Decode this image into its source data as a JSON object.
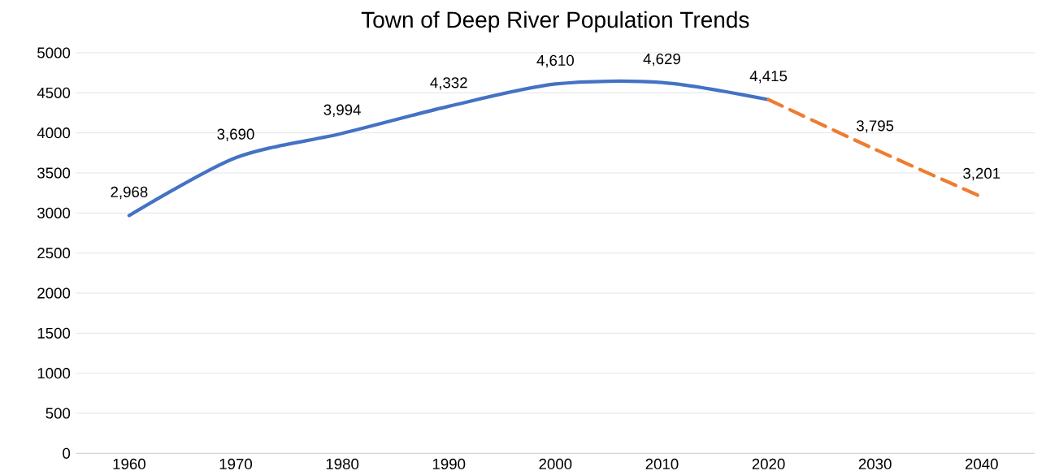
{
  "chart_data": {
    "type": "line",
    "title": "Town of Deep River Population Trends",
    "categories": [
      "1960",
      "1970",
      "1980",
      "1990",
      "2000",
      "2010",
      "2020",
      "2030",
      "2040"
    ],
    "series": [
      {
        "color": "#4472c4",
        "line_style": "solid",
        "values": [
          2968,
          3690,
          3994,
          4332,
          4610,
          4629,
          4415,
          null,
          null
        ],
        "value_labels": [
          "2,968",
          "3,690",
          "3,994",
          "4,332",
          "4,610",
          "4,629",
          "4,415",
          null,
          null
        ]
      },
      {
        "color": "#ed7d31",
        "line_style": "dashed",
        "values": [
          null,
          null,
          null,
          null,
          null,
          null,
          4415,
          3795,
          3201
        ],
        "value_labels": [
          null,
          null,
          null,
          null,
          null,
          null,
          null,
          "3,795",
          "3,201"
        ]
      }
    ],
    "ylim": [
      0,
      5000
    ],
    "yticks": [
      0,
      500,
      1000,
      1500,
      2000,
      2500,
      3000,
      3500,
      4000,
      4500,
      5000
    ],
    "grid": "y",
    "marker": "none"
  }
}
